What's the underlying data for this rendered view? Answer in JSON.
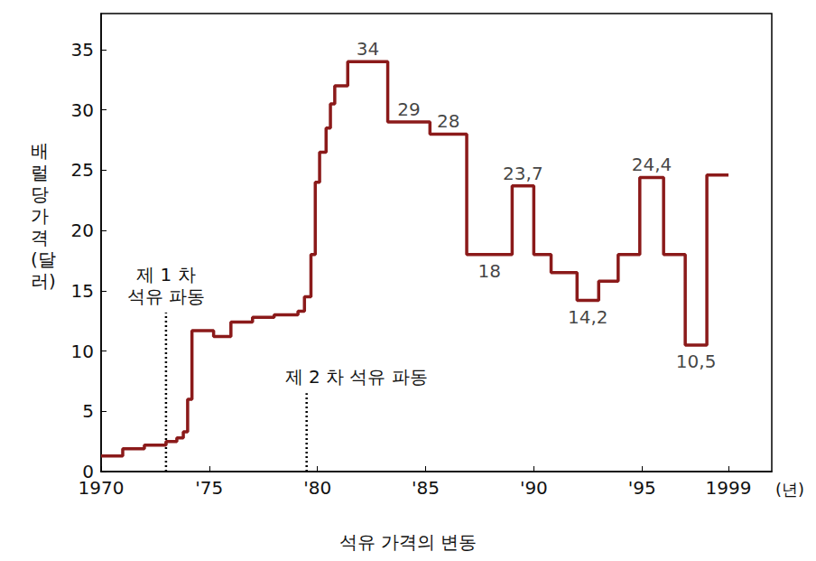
{
  "chart_data": {
    "type": "line",
    "title": "석유 가격의 변동",
    "xlabel": "(년)",
    "ylabel": "배럴당 가격(달러)",
    "line_style": "step",
    "color": "#8b1a1a",
    "grid": false,
    "x": [
      1970,
      1971,
      1972,
      1973,
      1973.5,
      1973.8,
      1974.0,
      1974.2,
      1975.2,
      1976.0,
      1977.0,
      1978.0,
      1979.1,
      1979.4,
      1979.7,
      1979.9,
      1980.1,
      1980.4,
      1980.6,
      1980.8,
      1981.4,
      1983.25,
      1985.2,
      1986.9,
      1989.0,
      1990.0,
      1990.8,
      1992.0,
      1993.0,
      1993.9,
      1994.9,
      1996.0,
      1997.0,
      1998.0,
      1999.0
    ],
    "values": [
      1.3,
      1.9,
      2.2,
      2.5,
      2.8,
      3.3,
      6,
      11.7,
      11.2,
      12.4,
      12.8,
      13,
      13.3,
      14.5,
      18,
      24,
      26.5,
      28.5,
      30.5,
      32,
      34,
      29,
      28,
      18,
      23.7,
      18,
      16.5,
      14.2,
      15.8,
      18,
      24.4,
      18,
      10.5,
      24.6,
      24.6
    ],
    "value_labels": [
      null,
      null,
      null,
      null,
      null,
      null,
      null,
      null,
      null,
      null,
      null,
      null,
      null,
      null,
      null,
      null,
      null,
      null,
      null,
      null,
      "34",
      "29",
      "28",
      "18",
      "23,7",
      null,
      null,
      "14,2",
      null,
      null,
      "24,4",
      null,
      "10,5",
      null,
      null
    ],
    "xlim": [
      1970,
      2001
    ],
    "xticks": [
      1970,
      {
        "value": 1975,
        "label": "'75"
      },
      {
        "value": 1980,
        "label": "'80"
      },
      {
        "value": 1985,
        "label": "'85"
      },
      {
        "value": 1990,
        "label": "'90"
      },
      {
        "value": 1995,
        "label": "'95"
      },
      1999
    ],
    "ylim": [
      0,
      38
    ],
    "yticks": [
      0,
      5,
      10,
      15,
      20,
      25,
      30,
      35
    ],
    "annotations": [
      {
        "text": "제 1 차 석유 파동",
        "x": 1973
      },
      {
        "text": "제 2 차 석유 파동",
        "x": 1979.5
      }
    ]
  }
}
